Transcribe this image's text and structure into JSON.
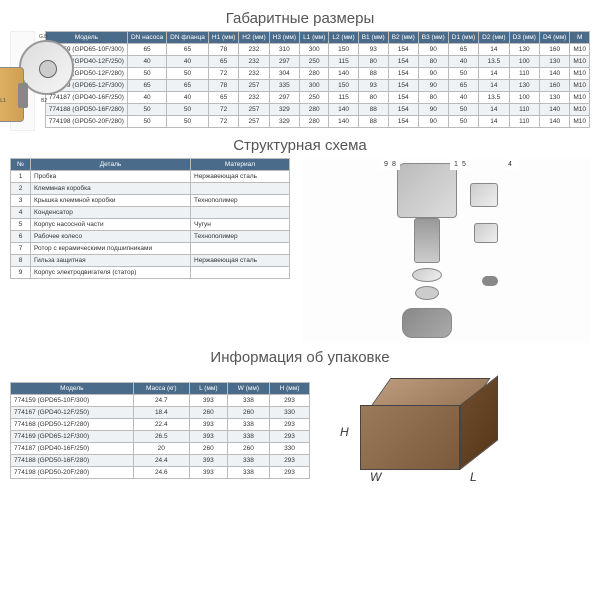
{
  "titles": {
    "dims": "Габаритные размеры",
    "struct": "Структурная схема",
    "pack": "Информация об упаковке"
  },
  "dims": {
    "headers": [
      "Модель",
      "DN насоса",
      "DN фланца",
      "H1 (мм)",
      "H2 (мм)",
      "H3 (мм)",
      "L1 (мм)",
      "L2 (мм)",
      "B1 (мм)",
      "B2 (мм)",
      "B3 (мм)",
      "D1 (мм)",
      "D2 (мм)",
      "D3 (мм)",
      "D4 (мм)",
      "M"
    ],
    "rows": [
      [
        "774159 (GPD65-10F/300)",
        "65",
        "65",
        "78",
        "232",
        "310",
        "300",
        "150",
        "93",
        "154",
        "90",
        "65",
        "14",
        "130",
        "160",
        "M10"
      ],
      [
        "774167 (GPD40-12F/250)",
        "40",
        "40",
        "65",
        "232",
        "297",
        "250",
        "115",
        "80",
        "154",
        "80",
        "40",
        "13.5",
        "100",
        "130",
        "M10"
      ],
      [
        "774168 (GPD50-12F/280)",
        "50",
        "50",
        "72",
        "232",
        "304",
        "280",
        "140",
        "88",
        "154",
        "90",
        "50",
        "14",
        "110",
        "140",
        "M10"
      ],
      [
        "774169 (GPD65-12F/300)",
        "65",
        "65",
        "78",
        "257",
        "335",
        "300",
        "150",
        "93",
        "154",
        "90",
        "65",
        "14",
        "130",
        "160",
        "M10"
      ],
      [
        "774187 (GPD40-16F/250)",
        "40",
        "40",
        "65",
        "232",
        "297",
        "250",
        "115",
        "80",
        "154",
        "80",
        "40",
        "13.5",
        "100",
        "130",
        "M10"
      ],
      [
        "774188 (GPD50-16F/280)",
        "50",
        "50",
        "72",
        "257",
        "329",
        "280",
        "140",
        "88",
        "154",
        "90",
        "50",
        "14",
        "110",
        "140",
        "M10"
      ],
      [
        "774198 (GPD50-20F/280)",
        "50",
        "50",
        "72",
        "257",
        "329",
        "280",
        "140",
        "88",
        "154",
        "90",
        "50",
        "14",
        "110",
        "140",
        "M10"
      ]
    ]
  },
  "parts": {
    "headers": [
      "№",
      "Деталь",
      "Материал"
    ],
    "rows": [
      [
        "1",
        "Пробка",
        "Нержавеющая сталь"
      ],
      [
        "2",
        "Клеммная коробка",
        ""
      ],
      [
        "3",
        "Крышка клеммной коробки",
        "Технополимер"
      ],
      [
        "4",
        "Конденсатор",
        ""
      ],
      [
        "5",
        "Корпус насосной части",
        "Чугун"
      ],
      [
        "6",
        "Рабочее колесо",
        "Технополимер"
      ],
      [
        "7",
        "Ротор с керамическими подшипниками",
        ""
      ],
      [
        "8",
        "Гильза защитная",
        "Нержавеющая сталь"
      ],
      [
        "9",
        "Корпус электродвигателя (статор)",
        ""
      ]
    ]
  },
  "pack": {
    "headers": [
      "Модель",
      "Масса (кг)",
      "L (мм)",
      "W (мм)",
      "H (мм)"
    ],
    "rows": [
      [
        "774159 (GPD65-10F/300)",
        "24.7",
        "393",
        "338",
        "293"
      ],
      [
        "774167 (GPD40-12F/250)",
        "18.4",
        "260",
        "260",
        "330"
      ],
      [
        "774168 (GPD50-12F/280)",
        "22.4",
        "393",
        "338",
        "293"
      ],
      [
        "774169 (GPD65-12F/300)",
        "26.5",
        "393",
        "338",
        "293"
      ],
      [
        "774187 (GPD40-16F/250)",
        "20",
        "260",
        "260",
        "330"
      ],
      [
        "774188 (GPD50-16F/280)",
        "24.4",
        "393",
        "338",
        "293"
      ],
      [
        "774198 (GPD50-20F/280)",
        "24.6",
        "393",
        "338",
        "293"
      ]
    ],
    "box_labels": {
      "h": "H",
      "w": "W",
      "l": "L"
    }
  },
  "colors": {
    "header_bg": "#4a6b8a",
    "row_alt": "#eef2f5",
    "border": "#bbb"
  }
}
